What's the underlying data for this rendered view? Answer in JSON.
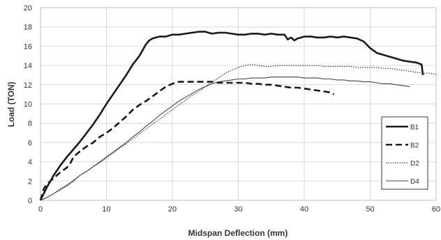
{
  "chart_data": {
    "type": "line",
    "xlabel": "Midspan Deflection (mm)",
    "ylabel": "Load (TON)",
    "xlim": [
      0,
      60
    ],
    "ylim": [
      0,
      20
    ],
    "xticks": [
      0,
      10,
      20,
      30,
      40,
      50,
      60
    ],
    "yticks": [
      0,
      2,
      4,
      6,
      8,
      10,
      12,
      14,
      16,
      18,
      20
    ],
    "grid": true,
    "legend_position": "right",
    "series": [
      {
        "name": "B1",
        "style": "solid-thick",
        "color": "#1a1a1a",
        "x": [
          0,
          1,
          2,
          3,
          4,
          5,
          6,
          7,
          8,
          9,
          10,
          11,
          12,
          13,
          14,
          15,
          16,
          16.5,
          17,
          18,
          19,
          20,
          21,
          22,
          23,
          24,
          25,
          26,
          27,
          28,
          29,
          30,
          31,
          32,
          33,
          34,
          35,
          36,
          37,
          37.5,
          38,
          38.5,
          39,
          40,
          41,
          42,
          43,
          44,
          45,
          46,
          47,
          48,
          49,
          50,
          51,
          52,
          53,
          54,
          55,
          56,
          57,
          57.8,
          58
        ],
        "y": [
          0,
          1.4,
          2.6,
          3.6,
          4.5,
          5.3,
          6.1,
          7.0,
          7.9,
          8.9,
          10.0,
          11.0,
          12.0,
          13.0,
          14.1,
          15.0,
          16.2,
          16.6,
          16.8,
          17.0,
          17.0,
          17.2,
          17.2,
          17.3,
          17.4,
          17.5,
          17.5,
          17.3,
          17.4,
          17.4,
          17.3,
          17.2,
          17.2,
          17.3,
          17.3,
          17.2,
          17.3,
          17.2,
          17.2,
          16.7,
          16.9,
          16.6,
          16.8,
          17.0,
          17.0,
          16.9,
          16.9,
          17.0,
          16.9,
          17.0,
          16.9,
          16.8,
          16.5,
          15.8,
          15.3,
          15.1,
          14.9,
          14.7,
          14.5,
          14.4,
          14.3,
          14.1,
          13.0
        ]
      },
      {
        "name": "B2",
        "style": "dashed-thick",
        "color": "#1a1a1a",
        "x": [
          0,
          0.5,
          1,
          2,
          3,
          4,
          4.5,
          5,
          6,
          7,
          8,
          9,
          10,
          11,
          12,
          13,
          14,
          15,
          16,
          17,
          18,
          19,
          20,
          21,
          22,
          23,
          24,
          25,
          26,
          27,
          28,
          29,
          30,
          31,
          32,
          33,
          34,
          35,
          36,
          37,
          38,
          39,
          40,
          41,
          42,
          43,
          44,
          44.5
        ],
        "y": [
          0,
          1.2,
          1.7,
          2.3,
          2.9,
          3.4,
          3.8,
          4.5,
          5.1,
          5.6,
          6.0,
          6.6,
          7.0,
          7.5,
          8.1,
          8.7,
          9.4,
          9.9,
          10.3,
          10.8,
          11.3,
          11.8,
          12.1,
          12.3,
          12.3,
          12.3,
          12.3,
          12.3,
          12.3,
          12.2,
          12.2,
          12.2,
          12.2,
          12.2,
          12.1,
          12.1,
          12.0,
          12.0,
          11.9,
          11.8,
          11.7,
          11.7,
          11.6,
          11.5,
          11.4,
          11.3,
          11.2,
          11.0
        ]
      },
      {
        "name": "D2",
        "style": "dotted",
        "color": "#333333",
        "x": [
          0,
          1,
          2,
          3,
          4,
          5,
          6,
          7,
          8,
          9,
          10,
          11,
          12,
          13,
          14,
          15,
          16,
          17,
          18,
          19,
          20,
          21,
          22,
          23,
          24,
          25,
          26,
          27,
          28,
          29,
          30,
          31,
          32,
          33,
          34,
          35,
          36,
          37,
          38,
          39,
          40,
          41,
          42,
          43,
          44,
          45,
          46,
          47,
          48,
          49,
          50,
          51,
          52,
          53,
          54,
          55,
          56,
          57,
          58,
          59,
          60
        ],
        "y": [
          0,
          0.3,
          0.7,
          1.2,
          1.6,
          2.1,
          2.6,
          3.0,
          3.5,
          3.9,
          4.4,
          4.9,
          5.4,
          5.9,
          6.4,
          6.9,
          7.4,
          7.9,
          8.4,
          8.9,
          9.4,
          9.9,
          10.4,
          10.9,
          11.3,
          11.8,
          12.3,
          12.7,
          13.2,
          13.5,
          13.8,
          14.0,
          14.1,
          14.0,
          13.9,
          13.9,
          14.0,
          14.0,
          14.0,
          14.0,
          14.0,
          14.0,
          14.0,
          13.9,
          13.9,
          13.9,
          13.9,
          13.9,
          13.8,
          13.8,
          13.8,
          13.8,
          13.7,
          13.7,
          13.6,
          13.5,
          13.4,
          13.3,
          13.2,
          13.2,
          13.1
        ]
      },
      {
        "name": "D4",
        "style": "solid-thin",
        "color": "#444444",
        "x": [
          0,
          1,
          2,
          3,
          4,
          5,
          6,
          7,
          8,
          9,
          10,
          11,
          12,
          13,
          14,
          15,
          16,
          17,
          18,
          19,
          20,
          21,
          22,
          23,
          24,
          25,
          26,
          27,
          28,
          29,
          30,
          31,
          32,
          33,
          34,
          35,
          36,
          37,
          38,
          39,
          40,
          41,
          42,
          43,
          44,
          45,
          46,
          47,
          48,
          49,
          50,
          51,
          52,
          53,
          54,
          55,
          56
        ],
        "y": [
          0,
          0.3,
          0.7,
          1.1,
          1.5,
          2.0,
          2.6,
          3.0,
          3.5,
          4.0,
          4.5,
          5.0,
          5.5,
          6.0,
          6.6,
          7.1,
          7.7,
          8.2,
          8.8,
          9.3,
          9.8,
          10.3,
          10.7,
          11.1,
          11.5,
          11.8,
          12.1,
          12.3,
          12.4,
          12.5,
          12.6,
          12.6,
          12.7,
          12.7,
          12.7,
          12.8,
          12.8,
          12.8,
          12.8,
          12.8,
          12.7,
          12.7,
          12.7,
          12.6,
          12.6,
          12.5,
          12.5,
          12.4,
          12.4,
          12.3,
          12.3,
          12.2,
          12.1,
          12.1,
          12.0,
          11.9,
          11.8
        ]
      }
    ]
  }
}
